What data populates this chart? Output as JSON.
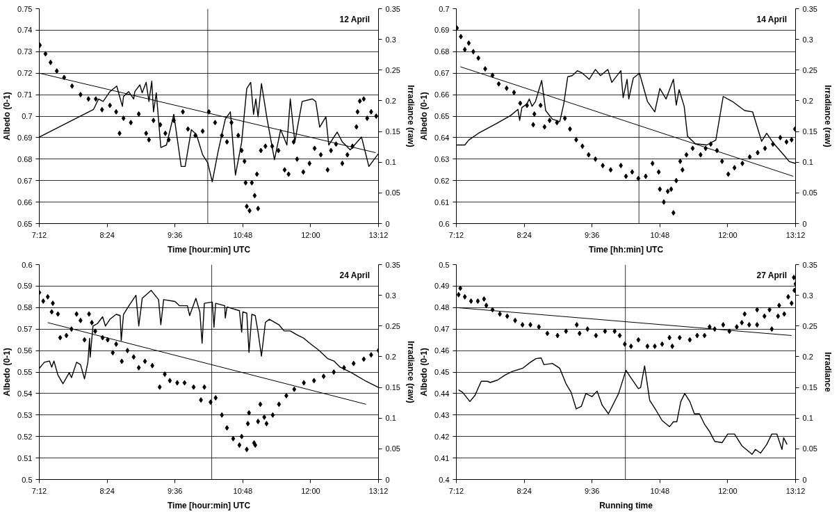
{
  "chart_data": [
    {
      "type": "scatter",
      "grid": "y",
      "annotations": [
        "12 April"
      ],
      "xlabel": "Time [hour:min] UTC",
      "ylabel": "Albedo (0-1)",
      "y2label": "Irradiance (raw)",
      "xlim": [
        7.2,
        13.2
      ],
      "xticks": [
        {
          "value": 7.2,
          "label": "7:12"
        },
        {
          "value": 8.4,
          "label": "8:24"
        },
        {
          "value": 9.6,
          "label": "9:36"
        },
        {
          "value": 10.8,
          "label": "10:48"
        },
        {
          "value": 12,
          "label": "12:00"
        },
        {
          "value": 13.2,
          "label": "13:12"
        }
      ],
      "ylim": [
        0.65,
        0.75
      ],
      "yticks": [
        0.65,
        0.66,
        0.67,
        0.68,
        0.69,
        0.7,
        0.71,
        0.72,
        0.73,
        0.74,
        0.75
      ],
      "y2lim": [
        0,
        0.35
      ],
      "y2ticks": [
        0,
        0.05,
        0.1,
        0.15,
        0.2,
        0.25,
        0.3,
        0.35
      ],
      "ref_lines": [
        {
          "axis": "x",
          "value": 10.18
        }
      ],
      "series": [
        {
          "marker": "diamond",
          "color": "#000000",
          "x": [
            7.21,
            7.31,
            7.4,
            7.51,
            7.64,
            7.78,
            7.93,
            8.07,
            8.2,
            8.31,
            8.45,
            8.56,
            8.62,
            8.69,
            8.82,
            8.96,
            9.09,
            9.14,
            9.22,
            9.34,
            9.43,
            9.49,
            9.58,
            9.74,
            9.83,
            9.96,
            10.09,
            10.2,
            10.31,
            10.43,
            10.52,
            10.6,
            10.72,
            10.78,
            10.83,
            10.85,
            10.87,
            10.92,
            10.96,
            11.01,
            11.07,
            11.05,
            11.12,
            11.2,
            11.32,
            11.43,
            11.54,
            11.61,
            11.7,
            11.76,
            11.87,
            11.98,
            12.07,
            12.18,
            12.3,
            12.36,
            12.45,
            12.56,
            12.65,
            12.74,
            12.81,
            12.83,
            12.87,
            12.94,
            13.0,
            13.07,
            13.16
          ],
          "values": [
            0.733,
            0.729,
            0.725,
            0.721,
            0.718,
            0.714,
            0.71,
            0.708,
            0.708,
            0.703,
            0.705,
            0.702,
            0.692,
            0.699,
            0.697,
            0.701,
            0.692,
            0.689,
            0.698,
            0.696,
            0.692,
            0.689,
            0.698,
            0.702,
            0.694,
            0.691,
            0.693,
            0.702,
            0.697,
            0.691,
            0.688,
            0.697,
            0.691,
            0.684,
            0.679,
            0.669,
            0.658,
            0.656,
            0.669,
            0.663,
            0.657,
            0.673,
            0.684,
            0.686,
            0.686,
            0.684,
            0.675,
            0.673,
            0.688,
            0.68,
            0.674,
            0.678,
            0.685,
            0.682,
            0.675,
            0.684,
            0.687,
            0.678,
            0.682,
            0.686,
            0.695,
            0.702,
            0.707,
            0.708,
            0.699,
            0.702,
            0.7
          ]
        },
        {
          "type": "line",
          "color": "#000000",
          "x": [
            7.2,
            13.15
          ],
          "values": [
            0.72,
            0.683
          ]
        },
        {
          "type": "line",
          "color": "#000000",
          "axis": "y2",
          "x": [
            7.2,
            8.16,
            8.25,
            8.33,
            8.45,
            8.57,
            8.67,
            8.69,
            8.78,
            8.87,
            8.89,
            8.98,
            9.02,
            9.09,
            9.14,
            9.19,
            9.22,
            9.27,
            9.35,
            9.45,
            9.58,
            9.71,
            9.78,
            9.89,
            9.98,
            10.09,
            10.18,
            10.26,
            10.36,
            10.49,
            10.58,
            10.67,
            10.78,
            10.87,
            10.94,
            10.99,
            11.03,
            11.07,
            11.13,
            11.23,
            11.36,
            11.47,
            11.58,
            11.64,
            11.72,
            11.85,
            12.03,
            12.09,
            12.16,
            12.27,
            12.32,
            12.47,
            12.56,
            12.7,
            12.9,
            13.03,
            13.2
          ],
          "values": [
            0.141,
            0.186,
            0.203,
            0.199,
            0.215,
            0.224,
            0.191,
            0.207,
            0.215,
            0.203,
            0.215,
            0.226,
            0.213,
            0.23,
            0.199,
            0.232,
            0.182,
            0.213,
            0.124,
            0.128,
            0.178,
            0.093,
            0.093,
            0.153,
            0.145,
            0.112,
            0.099,
            0.068,
            0.116,
            0.17,
            0.182,
            0.079,
            0.133,
            0.22,
            0.23,
            0.178,
            0.203,
            0.174,
            0.228,
            0.17,
            0.104,
            0.153,
            0.128,
            0.203,
            0.133,
            0.199,
            0.203,
            0.199,
            0.157,
            0.174,
            0.128,
            0.149,
            0.133,
            0.12,
            0.141,
            0.093,
            0.114
          ]
        }
      ]
    },
    {
      "type": "scatter",
      "grid": "y",
      "annotations": [
        "14 April"
      ],
      "xlabel": "Time [hh:min] UTC",
      "ylabel": "Albedo (0-1)",
      "y2label": "Irradiance (raw)",
      "xlim": [
        7.2,
        13.2
      ],
      "xticks": [
        {
          "value": 7.2,
          "label": "7:12"
        },
        {
          "value": 8.4,
          "label": "8:24"
        },
        {
          "value": 9.6,
          "label": "9:36"
        },
        {
          "value": 10.8,
          "label": "10:48"
        },
        {
          "value": 12,
          "label": "12:00"
        },
        {
          "value": 13.2,
          "label": "13:12"
        }
      ],
      "ylim": [
        0.6,
        0.7
      ],
      "yticks": [
        0.6,
        0.61,
        0.62,
        0.63,
        0.64,
        0.65,
        0.66,
        0.67,
        0.68,
        0.69,
        0.7
      ],
      "y2lim": [
        0,
        0.35
      ],
      "y2ticks": [
        0,
        0.05,
        0.1,
        0.15,
        0.2,
        0.25,
        0.3,
        0.35
      ],
      "ref_lines": [
        {
          "axis": "x",
          "value": 10.43
        }
      ],
      "series": [
        {
          "marker": "diamond",
          "color": "#000000",
          "x": [
            7.21,
            7.28,
            7.35,
            7.42,
            7.5,
            7.59,
            7.71,
            7.84,
            7.95,
            8.09,
            8.22,
            8.33,
            8.45,
            8.56,
            8.58,
            8.69,
            8.76,
            8.85,
            8.98,
            9.12,
            9.21,
            9.32,
            9.43,
            9.54,
            9.66,
            9.79,
            9.93,
            10.11,
            10.2,
            10.31,
            10.42,
            10.55,
            10.67,
            10.78,
            10.8,
            10.87,
            10.94,
            11.0,
            11.04,
            11.09,
            11.16,
            11.2,
            11.27,
            11.38,
            11.52,
            11.61,
            11.7,
            11.81,
            11.9,
            12.01,
            12.12,
            12.26,
            12.39,
            12.53,
            12.66,
            12.8,
            12.93,
            13.04,
            13.13,
            13.19
          ],
          "values": [
            0.691,
            0.687,
            0.681,
            0.684,
            0.68,
            0.677,
            0.672,
            0.669,
            0.665,
            0.663,
            0.661,
            0.656,
            0.655,
            0.646,
            0.651,
            0.655,
            0.645,
            0.648,
            0.647,
            0.649,
            0.644,
            0.639,
            0.636,
            0.632,
            0.63,
            0.627,
            0.625,
            0.627,
            0.622,
            0.624,
            0.621,
            0.622,
            0.628,
            0.624,
            0.616,
            0.61,
            0.615,
            0.616,
            0.605,
            0.62,
            0.629,
            0.625,
            0.632,
            0.635,
            0.632,
            0.635,
            0.637,
            0.634,
            0.629,
            0.623,
            0.626,
            0.628,
            0.631,
            0.633,
            0.635,
            0.637,
            0.64,
            0.638,
            0.639,
            0.644
          ]
        },
        {
          "type": "line",
          "color": "#000000",
          "x": [
            7.27,
            13.16
          ],
          "values": [
            0.673,
            0.622
          ]
        },
        {
          "type": "line",
          "color": "#000000",
          "axis": "y2",
          "x": [
            7.2,
            7.35,
            7.42,
            7.59,
            7.91,
            8.16,
            8.29,
            8.32,
            8.36,
            8.45,
            8.49,
            8.54,
            8.6,
            8.71,
            8.78,
            8.9,
            9.03,
            9.1,
            9.17,
            9.25,
            9.34,
            9.43,
            9.55,
            9.66,
            9.75,
            9.88,
            9.95,
            10.11,
            10.15,
            10.22,
            10.25,
            10.33,
            10.44,
            10.58,
            10.71,
            10.8,
            10.91,
            11.04,
            11.09,
            11.14,
            11.23,
            11.29,
            11.43,
            11.63,
            11.79,
            11.92,
            12.08,
            12.3,
            12.44,
            12.6,
            12.69,
            12.8,
            12.98,
            13.09,
            13.2
          ],
          "values": [
            0.128,
            0.128,
            0.136,
            0.147,
            0.163,
            0.176,
            0.186,
            0.168,
            0.189,
            0.195,
            0.203,
            0.191,
            0.199,
            0.233,
            0.184,
            0.17,
            0.166,
            0.195,
            0.239,
            0.241,
            0.249,
            0.245,
            0.235,
            0.251,
            0.241,
            0.251,
            0.23,
            0.249,
            0.205,
            0.235,
            0.203,
            0.237,
            0.245,
            0.199,
            0.182,
            0.22,
            0.203,
            0.235,
            0.193,
            0.218,
            0.191,
            0.142,
            0.13,
            0.128,
            0.136,
            0.207,
            0.199,
            0.184,
            0.182,
            0.134,
            0.147,
            0.132,
            0.113,
            0.101,
            0.098
          ]
        }
      ]
    },
    {
      "type": "scatter",
      "grid": "y",
      "annotations": [
        "24 April"
      ],
      "xlabel": "Time [hour:min] UTC",
      "ylabel": "Albedo (0-1)",
      "y2label": "Irradiance (raw)",
      "xlim": [
        7.2,
        13.2
      ],
      "xticks": [
        {
          "value": 7.2,
          "label": "7:12"
        },
        {
          "value": 8.4,
          "label": "8:24"
        },
        {
          "value": 9.6,
          "label": "9:36"
        },
        {
          "value": 10.8,
          "label": "10:48"
        },
        {
          "value": 12,
          "label": "12:00"
        },
        {
          "value": 13.2,
          "label": "13:12"
        }
      ],
      "ylim": [
        0.5,
        0.6
      ],
      "yticks": [
        0.5,
        0.51,
        0.52,
        0.53,
        0.54,
        0.55,
        0.56,
        0.57,
        0.58,
        0.59,
        0.6
      ],
      "y2lim": [
        0,
        0.35
      ],
      "y2ticks": [
        0,
        0.05,
        0.1,
        0.15,
        0.2,
        0.25,
        0.3,
        0.35
      ],
      "ref_lines": [
        {
          "axis": "x",
          "value": 10.25
        }
      ],
      "series": [
        {
          "marker": "diamond",
          "color": "#000000",
          "x": [
            7.2,
            7.27,
            7.35,
            7.42,
            7.44,
            7.53,
            7.57,
            7.68,
            7.77,
            7.86,
            7.93,
            8.0,
            8.08,
            8.13,
            8.19,
            8.32,
            8.41,
            8.5,
            8.56,
            8.66,
            8.76,
            8.87,
            8.96,
            9.07,
            9.2,
            9.33,
            9.42,
            9.51,
            9.64,
            9.77,
            9.93,
            10.06,
            10.12,
            10.23,
            10.32,
            10.43,
            10.52,
            10.63,
            10.74,
            10.78,
            10.87,
            10.89,
            10.91,
            11.0,
            11.02,
            11.07,
            11.11,
            11.18,
            11.22,
            11.33,
            11.44,
            11.57,
            11.71,
            11.88,
            12.06,
            12.23,
            12.41,
            12.59,
            12.76,
            12.94,
            13.07,
            13.2
          ],
          "values": [
            0.587,
            0.583,
            0.585,
            0.578,
            0.582,
            0.577,
            0.566,
            0.567,
            0.57,
            0.577,
            0.574,
            0.565,
            0.577,
            0.573,
            0.569,
            0.566,
            0.565,
            0.559,
            0.563,
            0.555,
            0.56,
            0.557,
            0.552,
            0.555,
            0.553,
            0.543,
            0.549,
            0.546,
            0.545,
            0.545,
            0.543,
            0.537,
            0.543,
            0.536,
            0.538,
            0.53,
            0.524,
            0.519,
            0.516,
            0.52,
            0.514,
            0.526,
            0.531,
            0.517,
            0.516,
            0.527,
            0.535,
            0.529,
            0.526,
            0.53,
            0.535,
            0.539,
            0.542,
            0.545,
            0.546,
            0.548,
            0.55,
            0.552,
            0.554,
            0.556,
            0.558,
            0.56
          ]
        },
        {
          "type": "line",
          "color": "#000000",
          "x": [
            7.35,
            12.98
          ],
          "values": [
            0.573,
            0.535
          ]
        },
        {
          "type": "line",
          "color": "#000000",
          "axis": "y2",
          "x": [
            7.2,
            7.29,
            7.38,
            7.42,
            7.46,
            7.53,
            7.62,
            7.73,
            7.77,
            7.86,
            7.93,
            8.0,
            8.06,
            8.09,
            8.1,
            8.15,
            8.23,
            8.32,
            8.37,
            8.45,
            8.56,
            8.63,
            8.65,
            8.69,
            8.8,
            8.91,
            8.96,
            9.0,
            9.02,
            9.18,
            9.31,
            9.35,
            9.4,
            9.6,
            9.68,
            9.82,
            9.86,
            9.97,
            10.04,
            10.08,
            10.12,
            10.26,
            10.29,
            10.32,
            10.48,
            10.49,
            10.52,
            10.74,
            10.78,
            10.8,
            10.87,
            10.91,
            10.96,
            11.02,
            11.07,
            11.13,
            11.2,
            11.27,
            11.44,
            11.53,
            11.64,
            11.75,
            11.88,
            12.01,
            12.14,
            12.3,
            12.41,
            12.52,
            12.72,
            12.98,
            13.2
          ],
          "values": [
            0.181,
            0.191,
            0.193,
            0.183,
            0.193,
            0.17,
            0.156,
            0.174,
            0.166,
            0.191,
            0.187,
            0.164,
            0.191,
            0.23,
            0.199,
            0.25,
            0.254,
            0.265,
            0.25,
            0.261,
            0.269,
            0.267,
            0.226,
            0.269,
            0.285,
            0.3,
            0.25,
            0.279,
            0.295,
            0.308,
            0.293,
            0.252,
            0.293,
            0.29,
            0.283,
            0.283,
            0.267,
            0.295,
            0.273,
            0.222,
            0.287,
            0.289,
            0.248,
            0.287,
            0.283,
            0.263,
            0.281,
            0.275,
            0.24,
            0.273,
            0.271,
            0.207,
            0.269,
            0.267,
            0.24,
            0.201,
            0.256,
            0.261,
            0.252,
            0.242,
            0.242,
            0.236,
            0.23,
            0.22,
            0.211,
            0.197,
            0.193,
            0.183,
            0.174,
            0.16,
            0.15
          ]
        }
      ]
    },
    {
      "type": "scatter",
      "grid": "y",
      "annotations": [
        "27 April"
      ],
      "xlabel": "Running time",
      "ylabel": "Albedo (0-1)",
      "y2label": "Irradiance",
      "xlim": [
        7.2,
        13.2
      ],
      "xticks": [
        {
          "value": 7.2,
          "label": "7:12"
        },
        {
          "value": 8.4,
          "label": "8:24"
        },
        {
          "value": 9.6,
          "label": "9:36"
        },
        {
          "value": 10.8,
          "label": "10:48"
        },
        {
          "value": 12,
          "label": "12:00"
        },
        {
          "value": 13.2,
          "label": "13:12"
        }
      ],
      "ylim": [
        0.4,
        0.5
      ],
      "yticks": [
        0.4,
        0.41,
        0.42,
        0.43,
        0.44,
        0.45,
        0.46,
        0.47,
        0.48,
        0.49,
        0.5
      ],
      "y2lim": [
        0,
        0.35
      ],
      "y2ticks": [
        0,
        0.05,
        0.1,
        0.15,
        0.2,
        0.25,
        0.3,
        0.35
      ],
      "ref_lines": [
        {
          "axis": "x",
          "value": 10.19
        }
      ],
      "series": [
        {
          "marker": "diamond",
          "color": "#000000",
          "x": [
            7.24,
            7.27,
            7.35,
            7.46,
            7.58,
            7.69,
            7.73,
            7.84,
            7.97,
            8.1,
            8.24,
            8.37,
            8.51,
            8.66,
            8.81,
            8.99,
            9.14,
            9.33,
            9.38,
            9.52,
            9.67,
            9.83,
            10.0,
            10.09,
            10.18,
            10.29,
            10.42,
            10.58,
            10.71,
            10.84,
            10.97,
            11.02,
            11.15,
            11.33,
            11.46,
            11.59,
            11.68,
            11.77,
            11.92,
            12.03,
            12.16,
            12.25,
            12.3,
            12.38,
            12.52,
            12.52,
            12.65,
            12.74,
            12.78,
            12.89,
            12.91,
            13.0,
            13.07,
            13.13,
            13.18,
            13.2,
            13.17
          ],
          "values": [
            0.486,
            0.489,
            0.485,
            0.483,
            0.483,
            0.484,
            0.481,
            0.479,
            0.477,
            0.476,
            0.474,
            0.472,
            0.472,
            0.471,
            0.468,
            0.467,
            0.469,
            0.472,
            0.468,
            0.47,
            0.467,
            0.469,
            0.469,
            0.467,
            0.463,
            0.462,
            0.465,
            0.462,
            0.462,
            0.463,
            0.466,
            0.462,
            0.466,
            0.465,
            0.467,
            0.467,
            0.471,
            0.47,
            0.472,
            0.469,
            0.471,
            0.473,
            0.477,
            0.472,
            0.472,
            0.479,
            0.476,
            0.479,
            0.47,
            0.476,
            0.481,
            0.477,
            0.485,
            0.482,
            0.488,
            0.491,
            0.494
          ]
        },
        {
          "type": "line",
          "color": "#000000",
          "x": [
            7.2,
            13.13
          ],
          "values": [
            0.48,
            0.467
          ]
        },
        {
          "type": "line",
          "color": "#000000",
          "axis": "y2",
          "x": [
            7.24,
            7.31,
            7.44,
            7.53,
            7.64,
            7.75,
            7.8,
            7.93,
            8.06,
            8.19,
            8.37,
            8.51,
            8.61,
            8.7,
            8.75,
            8.9,
            9.03,
            9.14,
            9.23,
            9.32,
            9.41,
            9.49,
            9.6,
            9.69,
            9.78,
            9.89,
            10.07,
            10.2,
            10.27,
            10.42,
            10.46,
            10.53,
            10.62,
            10.73,
            10.84,
            10.97,
            11.04,
            11.1,
            11.17,
            11.24,
            11.33,
            11.41,
            11.5,
            11.59,
            11.68,
            11.77,
            11.9,
            12.0,
            12.12,
            12.25,
            12.43,
            12.49,
            12.58,
            12.69,
            12.78,
            12.87,
            12.96,
            12.99,
            13.05
          ],
          "values": [
            0.146,
            0.142,
            0.127,
            0.137,
            0.16,
            0.16,
            0.158,
            0.162,
            0.17,
            0.176,
            0.181,
            0.191,
            0.197,
            0.198,
            0.187,
            0.189,
            0.181,
            0.156,
            0.142,
            0.115,
            0.119,
            0.14,
            0.135,
            0.144,
            0.121,
            0.107,
            0.14,
            0.178,
            0.168,
            0.148,
            0.15,
            0.185,
            0.129,
            0.113,
            0.096,
            0.086,
            0.094,
            0.094,
            0.127,
            0.14,
            0.127,
            0.107,
            0.107,
            0.09,
            0.078,
            0.062,
            0.06,
            0.074,
            0.074,
            0.055,
            0.041,
            0.049,
            0.043,
            0.057,
            0.074,
            0.074,
            0.049,
            0.068,
            0.057
          ]
        }
      ]
    }
  ]
}
